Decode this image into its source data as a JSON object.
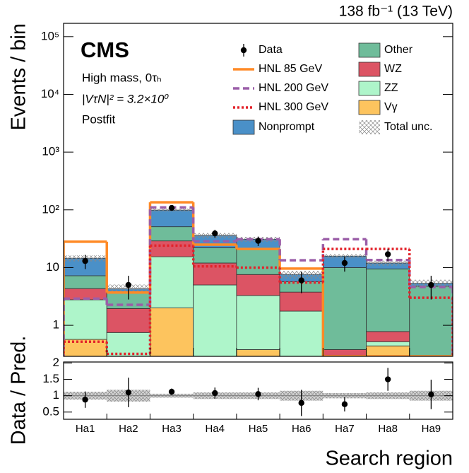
{
  "chart_data": {
    "type": "bar",
    "stacked": true,
    "log_scale": true,
    "title": "CMS",
    "subtitle": "138 fb⁻¹ (13 TeV)",
    "annotations": [
      "High mass, 0τₕ",
      "|VτN|² = 3.2×10⁰",
      "Postfit"
    ],
    "ylabel": "Events / bin",
    "xlabel": "Search region",
    "categories": [
      "Ha1",
      "Ha2",
      "Ha3",
      "Ha4",
      "Ha5",
      "Ha6",
      "Ha7",
      "Ha8",
      "Ha9"
    ],
    "ylim": [
      0.29,
      170000
    ],
    "yticks": [
      1,
      10,
      {
        "value": 100,
        "label": "10²"
      },
      {
        "value": 1000,
        "label": "10³"
      },
      {
        "value": 10000,
        "label": "10⁴"
      },
      {
        "value": 100000,
        "label": "10⁵"
      }
    ],
    "series": [
      {
        "name": "Vγ",
        "color": "#fdc45e",
        "values": [
          0.57,
          0.1,
          2.0,
          0.1,
          0.38,
          0.1,
          0.1,
          0.44,
          0.05
        ]
      },
      {
        "name": "ZZ",
        "color": "#aef5ca",
        "values": [
          2.2,
          0.65,
          13.4,
          4.9,
          2.9,
          1.66,
          0.15,
          0.08,
          0.1
        ]
      },
      {
        "name": "WZ",
        "color": "#dc5464",
        "values": [
          1.55,
          1.2,
          13.6,
          7.0,
          4.3,
          2.0,
          0.13,
          0.26,
          0.1
        ]
      },
      {
        "name": "Other",
        "color": "#6fbc9a",
        "values": [
          2.9,
          1.9,
          22,
          10,
          13.4,
          1.95,
          9.6,
          8.7,
          4.5
        ]
      },
      {
        "name": "Nonprompt",
        "color": "#4a90c8",
        "values": [
          7.3,
          0.45,
          48,
          14,
          10,
          1.9,
          5.8,
          2.5,
          0.6
        ]
      }
    ],
    "lines": [
      {
        "name": "HNL 85 GeV",
        "color": "#ff8a26",
        "style": "solid",
        "values": [
          28,
          3.7,
          135,
          25,
          21,
          9.6,
          0.29,
          0.29,
          0.29
        ]
      },
      {
        "name": "HNL 200 GeV",
        "color": "#9b5ea8",
        "style": "dashed",
        "values": [
          2.9,
          2.26,
          110,
          28.5,
          31,
          13.4,
          31,
          13.5,
          4.6
        ]
      },
      {
        "name": "HNL 300 GeV",
        "color": "#e3232b",
        "style": "dotted",
        "values": [
          0.52,
          0.32,
          24,
          10.5,
          10,
          5.5,
          21,
          21,
          3.0
        ]
      }
    ],
    "data": {
      "name": "Data",
      "values": [
        13,
        5,
        108,
        39,
        29,
        6,
        12,
        17,
        5
      ],
      "errors": [
        3.6,
        2.2,
        10.4,
        6.2,
        5.4,
        2.4,
        3.5,
        4.1,
        2.2
      ]
    },
    "total_unc": {
      "name": "Total unc.",
      "values": [
        0.12,
        0.18,
        0.06,
        0.1,
        0.1,
        0.15,
        0.08,
        0.1,
        0.15
      ]
    },
    "ratio": {
      "ylabel": "Data / Pred.",
      "ylim": [
        0.28,
        2.03
      ],
      "yticks": [
        0.5,
        1,
        1.5,
        2
      ],
      "values": [
        0.88,
        1.1,
        1.12,
        1.08,
        1.05,
        0.78,
        0.74,
        1.5,
        1.04
      ],
      "errors": [
        0.25,
        0.45,
        0.1,
        0.17,
        0.19,
        0.4,
        0.22,
        0.35,
        0.45
      ]
    }
  }
}
